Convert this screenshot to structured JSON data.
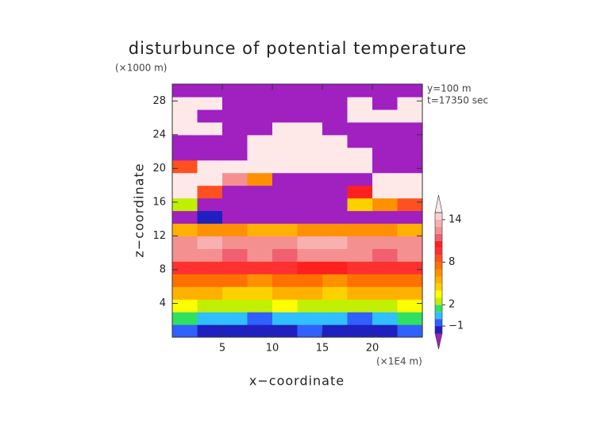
{
  "chart_data": {
    "type": "heatmap",
    "title": "disturbunce of potential temperature",
    "x_label": "x−coordinate",
    "y_label": "z−coordinate",
    "x_unit": "(×1E4 m)",
    "y_unit": "(×1000 m)",
    "annotations": [
      "y=100 m",
      "t=17350 sec"
    ],
    "xlim": [
      0,
      25
    ],
    "ylim": [
      0,
      30
    ],
    "xticks": [
      5,
      10,
      15,
      20
    ],
    "yticks": [
      4,
      8,
      12,
      16,
      20,
      24,
      28
    ],
    "x": [
      1.25,
      3.75,
      6.25,
      8.75,
      11.25,
      13.75,
      16.25,
      18.75,
      21.25,
      23.75
    ],
    "y": [
      0.75,
      2.25,
      3.75,
      5.25,
      6.75,
      8.25,
      9.75,
      11.25,
      12.75,
      14.25,
      15.75,
      17.25,
      18.75,
      20.25,
      21.75,
      23.25,
      24.75,
      26.25,
      27.75,
      29.25
    ],
    "values": [
      [
        -1,
        -1.5,
        -1.5,
        -2,
        -1.5,
        -1,
        -1.5,
        -2,
        -2,
        -1
      ],
      [
        1,
        0,
        0,
        -0.5,
        0.5,
        0,
        0,
        -0.5,
        0,
        1
      ],
      [
        3,
        2.5,
        2,
        2,
        3,
        2.5,
        2,
        2,
        2.5,
        3
      ],
      [
        5,
        5,
        4.5,
        4.5,
        5,
        5,
        4.5,
        5,
        5,
        5
      ],
      [
        7,
        7,
        7,
        6.5,
        7,
        7,
        6.5,
        7,
        7,
        7
      ],
      [
        9,
        9.5,
        9,
        9,
        9,
        10,
        10,
        9,
        9.5,
        9
      ],
      [
        12,
        12,
        11.5,
        12,
        11,
        12.5,
        12,
        12,
        11.5,
        12
      ],
      [
        12.5,
        13,
        12,
        12.5,
        12.5,
        13,
        13,
        12.5,
        12,
        12.5
      ],
      [
        5,
        6,
        6,
        5,
        5,
        6,
        6,
        6,
        6,
        5
      ],
      [
        -3,
        -2,
        -3,
        -3,
        -3,
        -3,
        -3,
        -3,
        -3,
        -3
      ],
      [
        2,
        -3,
        -3,
        -3,
        -3,
        -3,
        -3,
        4,
        6,
        8
      ],
      [
        15,
        8,
        -3,
        -3,
        -3,
        -3,
        -3,
        10,
        15,
        15
      ],
      [
        15,
        15,
        12,
        6,
        -3,
        -3,
        -3,
        -3,
        15,
        15
      ],
      [
        8,
        15,
        15,
        15,
        15,
        15,
        15,
        15,
        -3,
        -3
      ],
      [
        -3,
        -3,
        -3,
        15,
        15,
        15,
        15,
        15,
        -3,
        -3
      ],
      [
        -3,
        -3,
        -3,
        15,
        15,
        15,
        15,
        -3,
        -3,
        -3
      ],
      [
        15,
        15,
        -3,
        -3,
        15,
        15,
        -3,
        -3,
        -3,
        -3
      ],
      [
        15,
        -3,
        -3,
        -3,
        -3,
        -3,
        -3,
        15,
        15,
        15
      ],
      [
        15,
        15,
        -3,
        -3,
        -3,
        -3,
        -3,
        15,
        -3,
        15
      ],
      [
        -3,
        -3,
        -3,
        -3,
        -3,
        -3,
        -3,
        -3,
        -3,
        -3
      ]
    ],
    "colorbar": {
      "levels": [
        -2,
        -1,
        0,
        1,
        2,
        3,
        4,
        5,
        6,
        7,
        8,
        9,
        10,
        11,
        12,
        13,
        14,
        15
      ],
      "colors": [
        "#a020c0",
        "#2020c0",
        "#3060ff",
        "#30c0ff",
        "#30e060",
        "#c0f000",
        "#ffff00",
        "#ffd000",
        "#ffb000",
        "#ff9000",
        "#ff7000",
        "#ff5020",
        "#ff3030",
        "#ff2020",
        "#f06070",
        "#f49090",
        "#f8b0b0",
        "#fcd0d0",
        "#ffe8e8"
      ],
      "ticks": [
        {
          "value": -1,
          "label": "−1"
        },
        2,
        8,
        14
      ]
    }
  }
}
